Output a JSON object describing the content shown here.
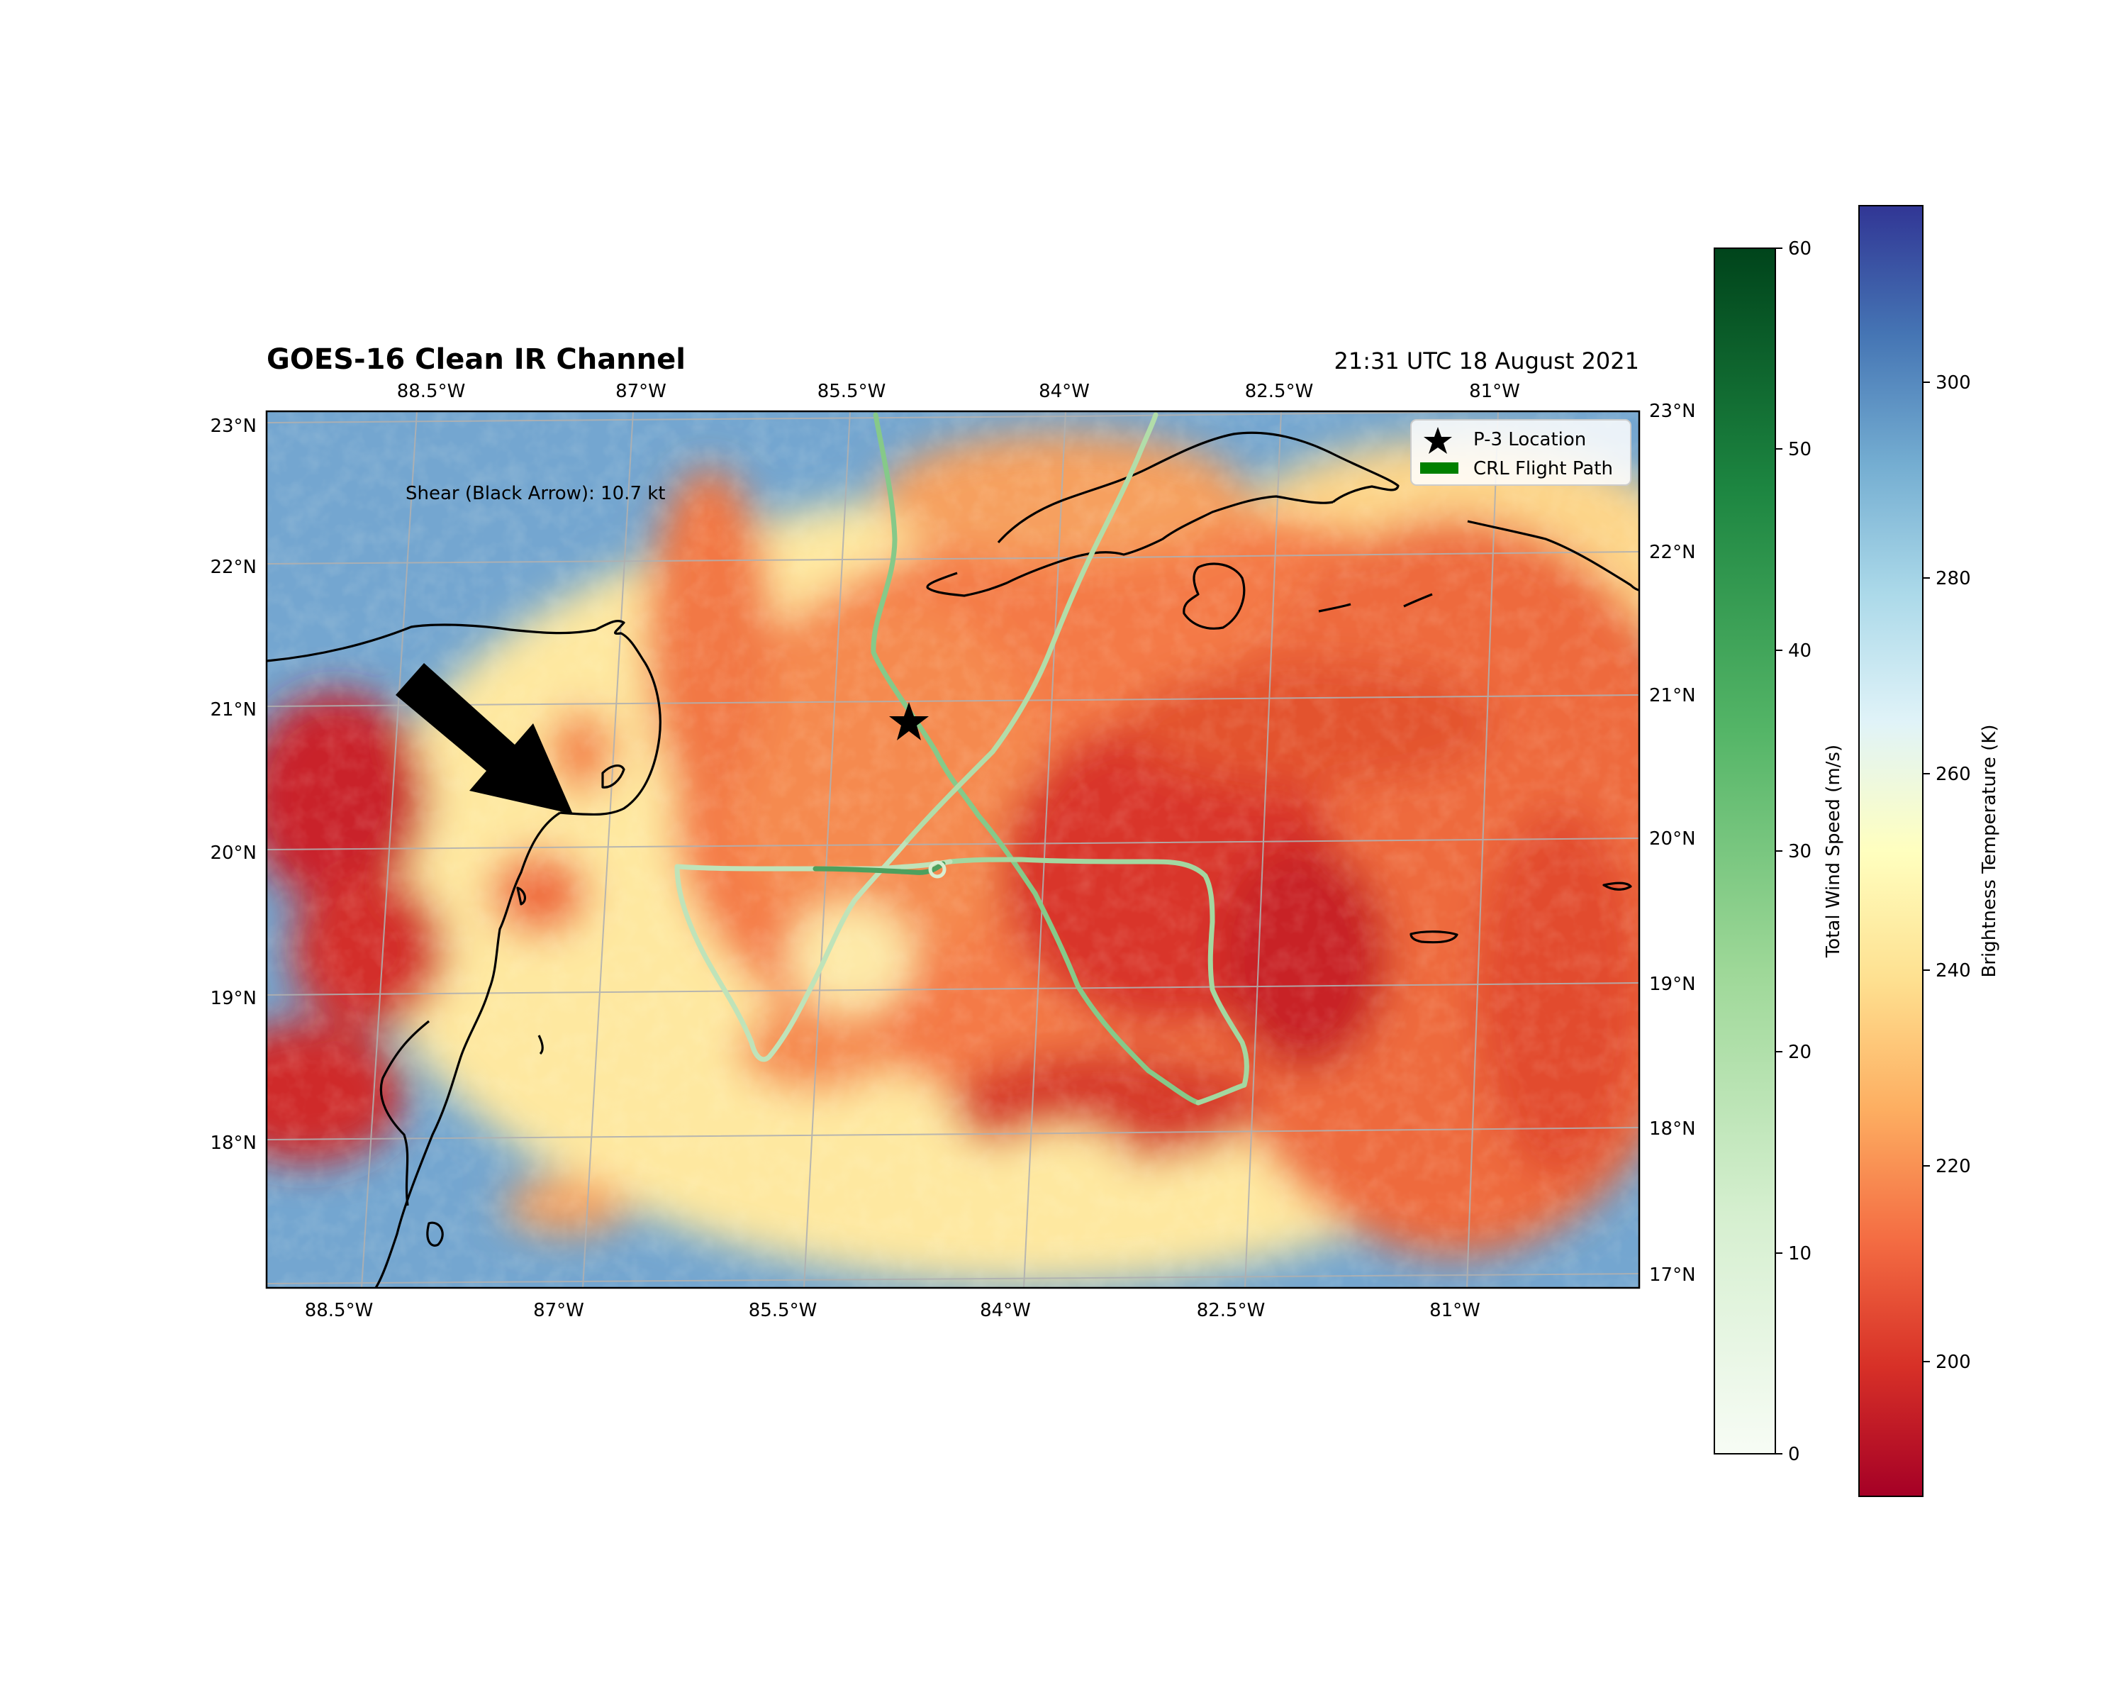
{
  "figure": {
    "title": "GOES-16 Clean IR Channel",
    "timestamp": "21:31 UTC 18 August 2021",
    "annotation": "Shear (Black Arrow): 10.7 kt"
  },
  "map": {
    "region": "Caribbean Sea / Yucatan Peninsula",
    "lon_range": [
      -89.0,
      -79.6
    ],
    "lat_range": [
      17.0,
      23.1
    ],
    "top_lon_labels": [
      "88.5°W",
      "87°W",
      "85.5°W",
      "84°W",
      "82.5°W",
      "81°W"
    ],
    "bottom_lon_labels": [
      "88.5°W",
      "87°W",
      "85.5°W",
      "84°W",
      "82.5°W",
      "81°W"
    ],
    "left_lat_labels": [
      "23°N",
      "22°N",
      "21°N",
      "20°N",
      "19°N",
      "18°N"
    ],
    "right_lat_labels": [
      "23°N",
      "22°N",
      "21°N",
      "20°N",
      "19°N",
      "18°N",
      "17°N"
    ],
    "gridlines": true
  },
  "legend": {
    "items": [
      {
        "label": "P-3 Location",
        "marker": "star-icon",
        "color": "#000000"
      },
      {
        "label": "CRL Flight Path",
        "marker": "line-patch",
        "color": "#008000"
      }
    ],
    "placement": "top-right"
  },
  "colorbars": {
    "wind": {
      "label": "Total Wind Speed (m/s)",
      "ticks": [
        "0",
        "10",
        "20",
        "30",
        "40",
        "50",
        "60"
      ],
      "colormap": "Greens",
      "range": [
        0,
        60
      ]
    },
    "temperature": {
      "label": "Brightness Temperature (K)",
      "ticks": [
        "200",
        "220",
        "240",
        "260",
        "280",
        "300"
      ],
      "colormap": "RdYlBu",
      "range": [
        187,
        318
      ]
    }
  },
  "colors": {
    "cold_top": "#c41e2a",
    "warm_surface": "#4575b4",
    "flight_path": "#7cc47f",
    "coastline": "#000000",
    "grid": "#b0b0b0"
  },
  "p3_location": {
    "lon": -84.6,
    "lat": 20.9
  },
  "shear_vector": {
    "speed_kt": 10.7,
    "direction": "from northwest"
  }
}
